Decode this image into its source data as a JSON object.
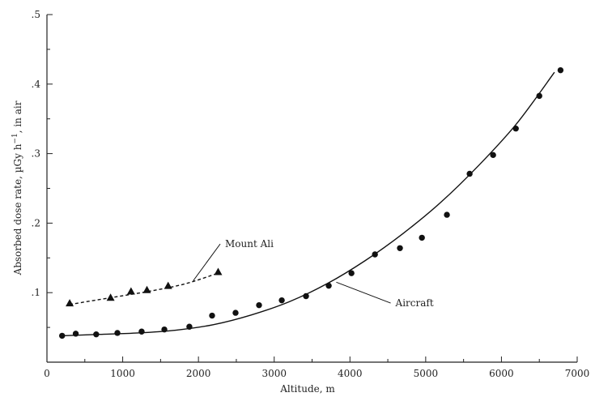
{
  "chart_data": {
    "type": "scatter",
    "title": "",
    "xlabel": "Altitude, m",
    "ylabel": "Absorbed dose rate, µGy h",
    "ylabel_sup": "−1",
    "ylabel_suffix": ", in air",
    "xlim": [
      0,
      7000
    ],
    "ylim": [
      0,
      0.5
    ],
    "x_ticks": [
      0,
      1000,
      2000,
      3000,
      4000,
      5000,
      6000,
      7000
    ],
    "x_tick_labels": [
      "0",
      "1000",
      "2000",
      "3000",
      "4000",
      "5000",
      "6000",
      "7000"
    ],
    "y_ticks": [
      0.1,
      0.2,
      0.3,
      0.4,
      0.5
    ],
    "y_tick_labels": [
      ".1",
      ".2",
      ".3",
      ".4",
      ".5"
    ],
    "grid": false,
    "legend": "none",
    "series": [
      {
        "name": "Aircraft",
        "marker": "circle",
        "line_style": "solid",
        "x": [
          200,
          380,
          650,
          930,
          1250,
          1550,
          1880,
          2180,
          2490,
          2800,
          3100,
          3420,
          3720,
          4020,
          4330,
          4660,
          4950,
          5280,
          5580,
          5890,
          6190,
          6500,
          6780
        ],
        "y": [
          0.038,
          0.041,
          0.04,
          0.042,
          0.044,
          0.047,
          0.051,
          0.067,
          0.071,
          0.082,
          0.089,
          0.095,
          0.11,
          0.128,
          0.155,
          0.164,
          0.179,
          0.212,
          0.271,
          0.298,
          0.336,
          0.383,
          0.42
        ],
        "fit_x": [
          200,
          700,
          1200,
          1700,
          2200,
          2700,
          3200,
          3700,
          4200,
          4700,
          5200,
          5700,
          6200,
          6700
        ],
        "fit_y": [
          0.038,
          0.04,
          0.042,
          0.046,
          0.054,
          0.068,
          0.087,
          0.113,
          0.146,
          0.185,
          0.23,
          0.283,
          0.343,
          0.417
        ]
      },
      {
        "name": "Mount Ali",
        "marker": "triangle",
        "line_style": "dashed",
        "x": [
          300,
          840,
          1110,
          1320,
          1600,
          2260
        ],
        "y": [
          0.085,
          0.093,
          0.102,
          0.104,
          0.11,
          0.13
        ],
        "fit_x": [
          300,
          800,
          1300,
          1800,
          2260
        ],
        "fit_y": [
          0.083,
          0.092,
          0.101,
          0.112,
          0.128
        ]
      }
    ],
    "annotations": [
      {
        "text": "Mount Ali",
        "series": "Mount Ali",
        "point_x": 1930,
        "point_y": 0.117,
        "label_x": 2330,
        "label_y": 0.17
      },
      {
        "text": "Aircraft",
        "series": "Aircraft",
        "point_x": 3820,
        "point_y": 0.115,
        "label_x": 4580,
        "label_y": 0.085
      }
    ]
  }
}
